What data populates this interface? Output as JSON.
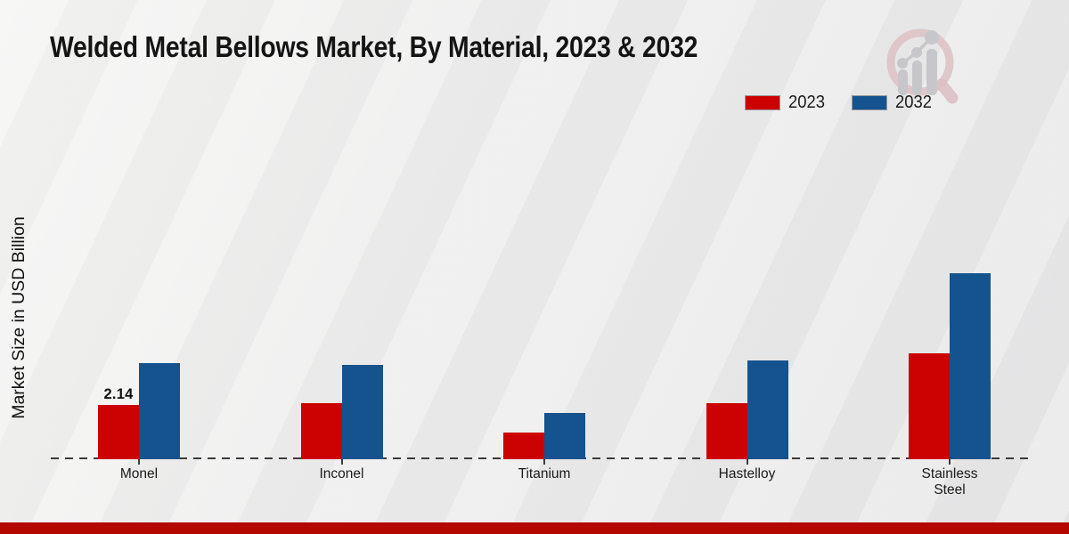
{
  "page": {
    "title": "Welded Metal Bellows Market, By Material, 2023 & 2032",
    "ylabel": "Market Size in USD Billion",
    "footer_color": "#b30700",
    "axis_color": "#3b3b3b"
  },
  "logo": {
    "name": "magnifier-growth-chart-logo",
    "ring_color": "#dcbfc3",
    "bars_color": "#c7c7cb"
  },
  "chart_data": {
    "type": "bar",
    "title": "Welded Metal Bellows Market, By Material, 2023 & 2032",
    "xlabel": "",
    "ylabel": "Market Size in USD Billion",
    "categories": [
      "Monel",
      "Inconel",
      "Titanium",
      "Hastelloy",
      "Stainless Steel"
    ],
    "series": [
      {
        "name": "2023",
        "color": "#cc0202",
        "values": [
          2.14,
          2.21,
          1.05,
          2.21,
          4.17
        ]
      },
      {
        "name": "2032",
        "color": "#15538e",
        "values": [
          3.79,
          3.73,
          1.82,
          3.89,
          7.33
        ]
      }
    ],
    "bar_labels": [
      {
        "category_index": 0,
        "series_index": 0,
        "text": "2.14"
      }
    ],
    "ylim": [
      0,
      8
    ],
    "grid": false,
    "y_tick_labels_visible": false,
    "legend_position": "top-right",
    "baseline_style": "dashed"
  }
}
